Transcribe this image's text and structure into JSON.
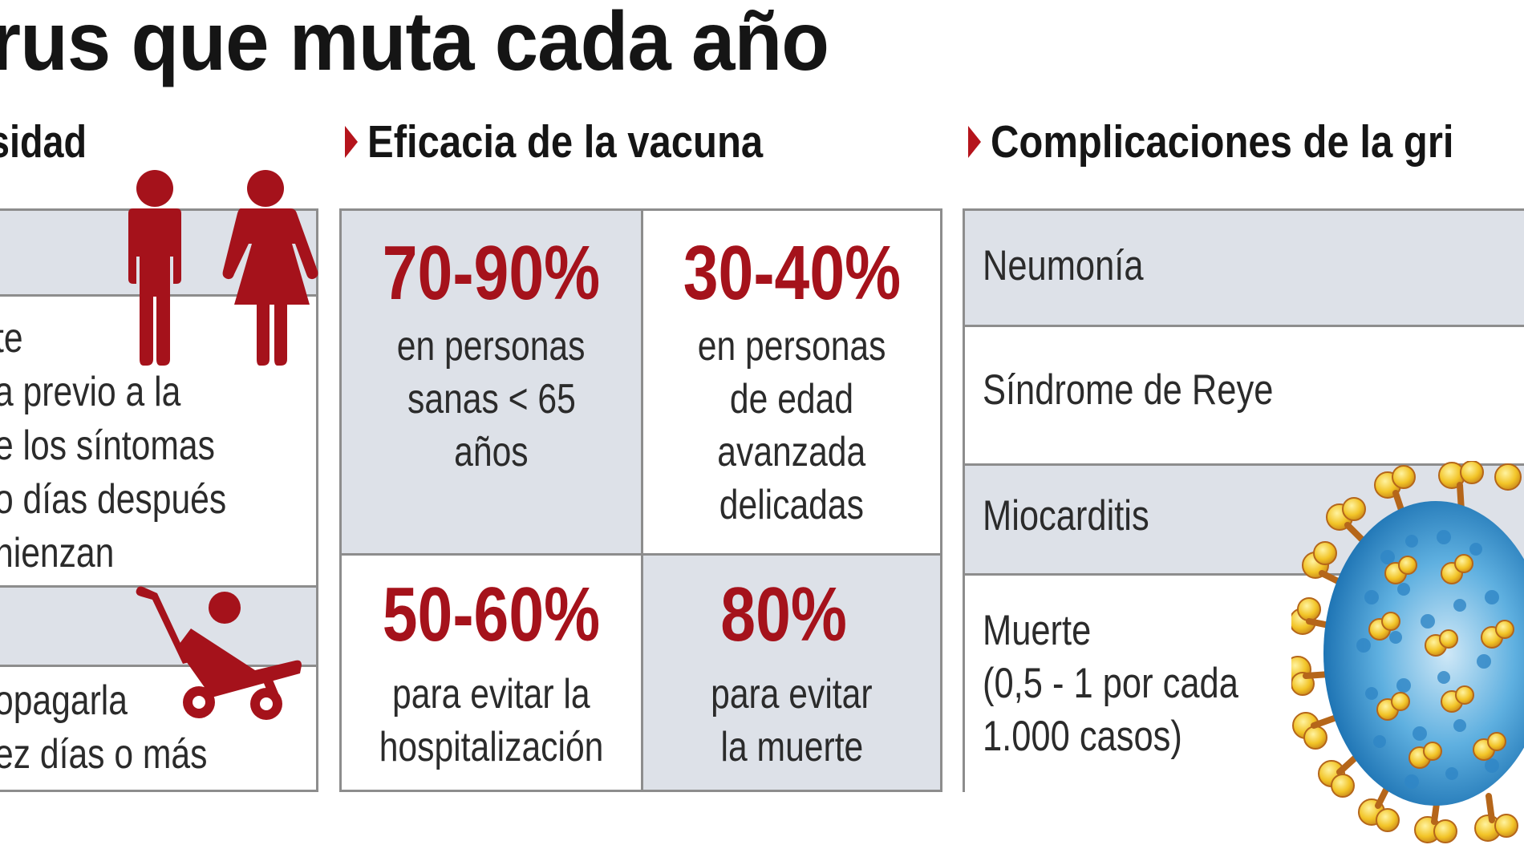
{
  "header": {
    "title": "rus que muta cada año"
  },
  "sections": {
    "left_title": "sidad",
    "vaccine_title": "Eficacia de la vacuna",
    "complications_title": "Complicaciones de la gri"
  },
  "left_box": {
    "contagion_lines": [
      "te",
      "a previo a la",
      "e los síntomas",
      "o días después",
      "nienzan"
    ],
    "child_lines": [
      "opagarla",
      "ez días o más"
    ],
    "icons": [
      "man-icon",
      "woman-icon",
      "stroller-icon"
    ]
  },
  "vaccine": {
    "cells": [
      {
        "pct": "70-90%",
        "lines": [
          "en personas",
          "sanas < 65",
          "años"
        ]
      },
      {
        "pct": "30-40%",
        "lines": [
          "en personas",
          "de edad",
          "avanzada",
          "delicadas"
        ]
      },
      {
        "pct": "50-60%",
        "lines": [
          "para evitar la",
          "hospitalización"
        ]
      },
      {
        "pct": "80%",
        "lines": [
          "para evitar",
          "la muerte"
        ]
      }
    ]
  },
  "complications": {
    "rows": [
      {
        "label": "Neumonía"
      },
      {
        "label": "Síndrome de Reye"
      },
      {
        "label": "Miocarditis"
      },
      {
        "label": "Muerte",
        "sub": [
          "(0,5 - 1 por cada",
          "1.000 casos)"
        ]
      }
    ],
    "illustration": "virus-icon"
  },
  "colors": {
    "accent_red": "#a5121b",
    "row_shade": "#dde1e8",
    "border": "#8d8d8d"
  }
}
